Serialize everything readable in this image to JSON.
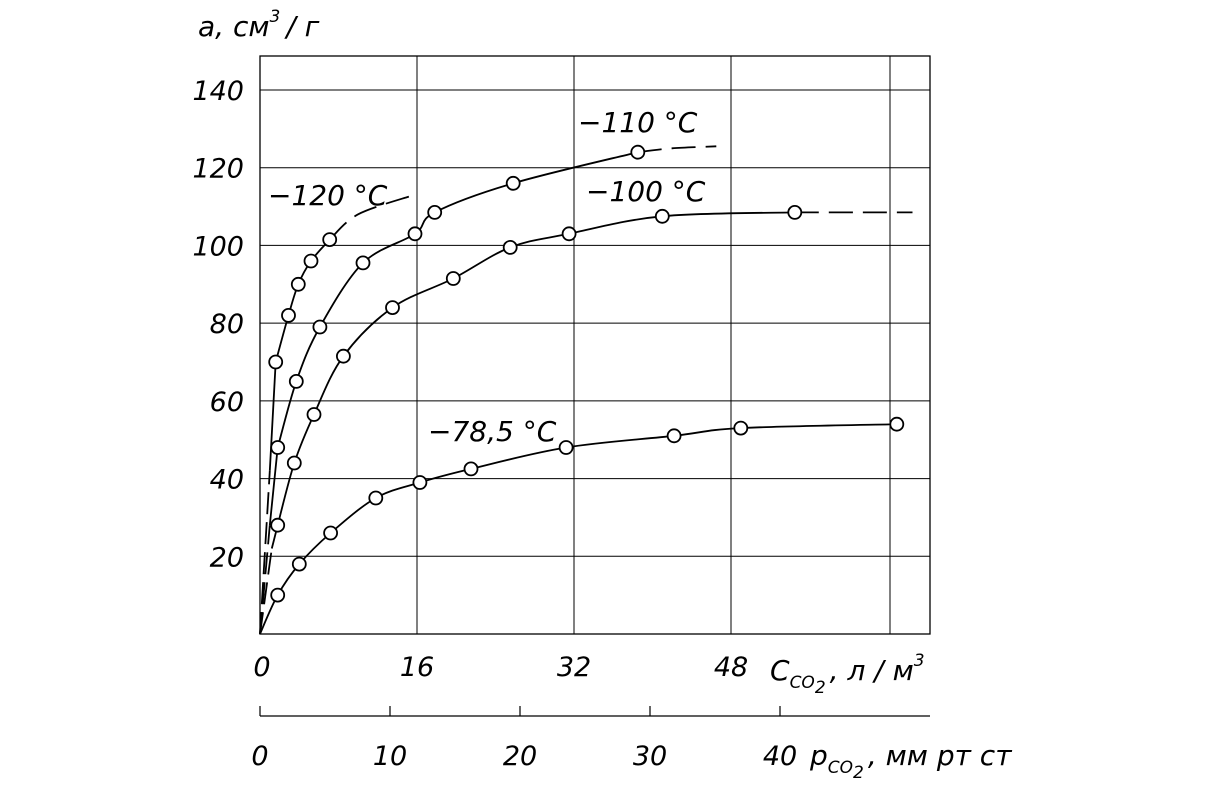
{
  "chart_data": {
    "type": "line",
    "title": "",
    "ylabel": "a, см³/г",
    "ylabel_parts": {
      "main": "a, см",
      "sup": "3",
      "unit": "/ г"
    },
    "xlabel": "C_CO2 , л/м³",
    "xlabel_parts": {
      "sym": "C",
      "sub": "CO",
      "subsub": "2",
      "rest": ", л / м",
      "sup": "3"
    },
    "x2label": "p_CO2 , мм рт ст",
    "x2label_parts": {
      "sym": "p",
      "sub": "CO",
      "subsub": "2",
      "rest": ", мм рт ст"
    },
    "xlim": [
      0,
      51.5
    ],
    "ylim": [
      0,
      140
    ],
    "x_ticks": [
      0,
      16,
      32,
      48
    ],
    "y_ticks": [
      20,
      40,
      60,
      80,
      100,
      120,
      140
    ],
    "x2_ticks": [
      0,
      10,
      20,
      30,
      40
    ],
    "grid": true,
    "series": [
      {
        "name": "−120 °C",
        "dashed_start": [
          [
            0,
            0
          ],
          [
            1.0,
            42
          ]
        ],
        "points": [
          [
            1.6,
            70
          ],
          [
            2.9,
            82
          ],
          [
            3.9,
            90
          ],
          [
            5.2,
            96
          ],
          [
            7.1,
            101.5
          ]
        ],
        "dashed_end": [
          [
            10,
            108
          ],
          [
            15.7,
            113
          ]
        ]
      },
      {
        "name": "−110 °C",
        "dashed_start": [
          [
            0,
            0
          ],
          [
            1.0,
            28
          ]
        ],
        "points": [
          [
            1.8,
            48
          ],
          [
            3.7,
            65
          ],
          [
            6.1,
            79
          ],
          [
            10.5,
            95.5
          ],
          [
            15.8,
            103
          ],
          [
            17.8,
            108.5
          ],
          [
            25.8,
            116
          ],
          [
            38.5,
            124
          ]
        ],
        "dashed_end": [
          [
            42,
            125
          ],
          [
            46.5,
            125.5
          ]
        ]
      },
      {
        "name": "−100 °C",
        "dashed_start": [
          [
            0,
            0
          ],
          [
            1.2,
            22
          ]
        ],
        "points": [
          [
            1.8,
            28
          ],
          [
            3.5,
            44
          ],
          [
            5.5,
            56.5
          ],
          [
            8.5,
            71.5
          ],
          [
            13.5,
            84
          ],
          [
            19.7,
            91.5
          ],
          [
            25.5,
            99.5
          ],
          [
            31.5,
            103
          ],
          [
            41,
            107.5
          ],
          [
            54.5,
            108.5
          ]
        ],
        "dashed_end": [
          [
            62,
            108.5
          ],
          [
            66.5,
            108.5
          ]
        ]
      },
      {
        "name": "−78,5 °C",
        "dashed_start": [],
        "points": [
          [
            0,
            0
          ],
          [
            1.8,
            10
          ],
          [
            4,
            18
          ],
          [
            7.2,
            26
          ],
          [
            11.8,
            35
          ],
          [
            16.3,
            39
          ],
          [
            21.5,
            42.5
          ],
          [
            31.2,
            48
          ],
          [
            42.2,
            51
          ],
          [
            49,
            53
          ],
          [
            64.9,
            54
          ]
        ],
        "dashed_end": []
      }
    ]
  }
}
